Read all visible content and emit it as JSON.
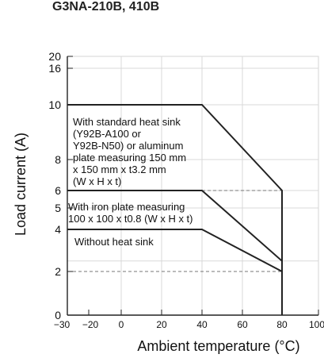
{
  "header": {
    "partial_title": "G3NA-210B, 410B"
  },
  "chart_data": {
    "type": "line",
    "title": "",
    "xlabel": "Ambient temperature (°C)",
    "ylabel": "Load current (A)",
    "xlim": [
      -30,
      100
    ],
    "ylim": [
      0,
      20
    ],
    "x_ticks": [
      "−30",
      "−20",
      "0",
      "20",
      "40",
      "60",
      "80",
      "100"
    ],
    "y_ticks": [
      "0",
      "2",
      "4",
      "5",
      "6",
      "8",
      "10",
      "16",
      "20"
    ],
    "grid": true,
    "series": [
      {
        "name": "With standard heat sink (Y92B-A100 or Y92B-N50) or aluminum plate measuring 150 mm x 150 mm x t3.2 mm (W x H x t)",
        "x": [
          -30,
          40,
          80,
          80
        ],
        "y": [
          10,
          10,
          6,
          0
        ]
      },
      {
        "name": "With iron plate measuring 100 x 100 x t0.8 (W x H x t)",
        "x": [
          -30,
          40,
          80,
          80
        ],
        "y": [
          6,
          6,
          2.5,
          0
        ]
      },
      {
        "name": "Without heat sink",
        "x": [
          -30,
          40,
          80,
          80
        ],
        "y": [
          4,
          4,
          2,
          0
        ]
      }
    ],
    "reference_lines": [
      {
        "x": [
          40,
          80
        ],
        "y": [
          6,
          6
        ]
      },
      {
        "x": [
          -30,
          80
        ],
        "y": [
          2,
          2
        ]
      }
    ],
    "annotations": [
      "With standard heat sink",
      "(Y92B-A100 or",
      "Y92B-N50) or aluminum",
      "plate measuring 150 mm",
      "x 150 mm x t3.2 mm",
      "(W x H x t)",
      "With iron plate measuring",
      "100 x 100 x t0.8 (W x H x t)",
      "Without heat sink"
    ]
  }
}
